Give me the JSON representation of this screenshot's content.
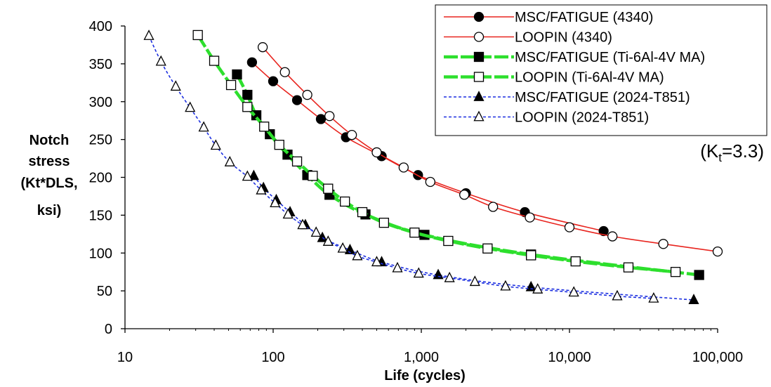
{
  "chart_data": {
    "type": "line",
    "xlabel": "Life (cycles)",
    "ylabel_lines": [
      "Notch",
      "stress",
      "(Kt*DLS,",
      "ksi)"
    ],
    "x_scale": "log",
    "xlim": [
      10,
      100000
    ],
    "ylim": [
      0,
      400
    ],
    "x_tick_values": [
      10,
      100,
      1000,
      10000,
      100000
    ],
    "x_tick_labels": [
      "10",
      "100",
      "1,000",
      "10,000",
      "100,000"
    ],
    "y_tick_values": [
      0,
      50,
      100,
      150,
      200,
      250,
      300,
      350,
      400
    ],
    "y_tick_labels": [
      "0",
      "50",
      "100",
      "150",
      "200",
      "250",
      "300",
      "350",
      "400"
    ],
    "grid": false,
    "legend_position": "top-right",
    "annotation": {
      "prefix": "(K",
      "subscript": "t",
      "suffix": "=3.3)"
    },
    "series": [
      {
        "name": "MSC/FATIGUE (4340)",
        "color": "#e8251f",
        "line": "solid",
        "marker": "filled-circle",
        "points": [
          [
            72,
            352
          ],
          [
            100,
            327
          ],
          [
            145,
            302
          ],
          [
            210,
            277
          ],
          [
            310,
            253
          ],
          [
            540,
            228
          ],
          [
            950,
            203
          ],
          [
            2000,
            179
          ],
          [
            5000,
            154
          ],
          [
            17000,
            129
          ]
        ]
      },
      {
        "name": "LOOPIN (4340)",
        "color": "#e8251f",
        "line": "solid",
        "marker": "open-circle",
        "points": [
          [
            85,
            372
          ],
          [
            120,
            339
          ],
          [
            170,
            309
          ],
          [
            240,
            281
          ],
          [
            340,
            256
          ],
          [
            500,
            233
          ],
          [
            760,
            213
          ],
          [
            1150,
            194
          ],
          [
            1950,
            177
          ],
          [
            3050,
            161
          ],
          [
            5400,
            147
          ],
          [
            10000,
            134
          ],
          [
            19500,
            122
          ],
          [
            43000,
            112
          ],
          [
            100000,
            102
          ]
        ]
      },
      {
        "name": "MSC/FATIGUE (Ti-6Al-4V MA)",
        "color": "#2ddf2d",
        "line": "dashed",
        "marker": "filled-square",
        "points": [
          [
            57,
            336
          ],
          [
            67,
            309
          ],
          [
            77,
            282
          ],
          [
            95,
            257
          ],
          [
            125,
            230
          ],
          [
            170,
            203
          ],
          [
            240,
            177
          ],
          [
            420,
            151
          ],
          [
            1050,
            124
          ],
          [
            5500,
            98
          ],
          [
            75000,
            71
          ]
        ]
      },
      {
        "name": "LOOPIN (Ti-6Al-4V MA)",
        "color": "#2ddf2d",
        "line": "dashed",
        "marker": "open-square",
        "points": [
          [
            31,
            388
          ],
          [
            40,
            354
          ],
          [
            52,
            322
          ],
          [
            67,
            293
          ],
          [
            87,
            267
          ],
          [
            110,
            243
          ],
          [
            145,
            221
          ],
          [
            185,
            202
          ],
          [
            235,
            185
          ],
          [
            305,
            168
          ],
          [
            400,
            154
          ],
          [
            560,
            140
          ],
          [
            900,
            127
          ],
          [
            1520,
            116
          ],
          [
            2800,
            106
          ],
          [
            5500,
            97
          ],
          [
            11000,
            89
          ],
          [
            25000,
            81
          ],
          [
            52000,
            75
          ]
        ]
      },
      {
        "name": "MSC/FATIGUE (2024-T851)",
        "color": "#1c2fe0",
        "line": "dotted",
        "marker": "filled-triangle",
        "points": [
          [
            74,
            202
          ],
          [
            86,
            186
          ],
          [
            105,
            170
          ],
          [
            130,
            154
          ],
          [
            165,
            137
          ],
          [
            215,
            120
          ],
          [
            330,
            104
          ],
          [
            540,
            88
          ],
          [
            1300,
            71
          ],
          [
            5500,
            55
          ],
          [
            69000,
            38
          ]
        ]
      },
      {
        "name": "LOOPIN (2024-T851)",
        "color": "#1c2fe0",
        "line": "dotted",
        "marker": "open-triangle",
        "points": [
          [
            14.5,
            387
          ],
          [
            17.5,
            353
          ],
          [
            22,
            320
          ],
          [
            27.5,
            292
          ],
          [
            34,
            266
          ],
          [
            41,
            242
          ],
          [
            51,
            220
          ],
          [
            67,
            201
          ],
          [
            83,
            183
          ],
          [
            103,
            166
          ],
          [
            126,
            151
          ],
          [
            158,
            137
          ],
          [
            195,
            127
          ],
          [
            235,
            115
          ],
          [
            295,
            106
          ],
          [
            370,
            96
          ],
          [
            500,
            88
          ],
          [
            690,
            80
          ],
          [
            960,
            73
          ],
          [
            1550,
            67
          ],
          [
            2300,
            62
          ],
          [
            3700,
            56
          ],
          [
            6100,
            52
          ],
          [
            10700,
            48
          ],
          [
            21000,
            43
          ],
          [
            37000,
            40
          ]
        ]
      }
    ]
  }
}
